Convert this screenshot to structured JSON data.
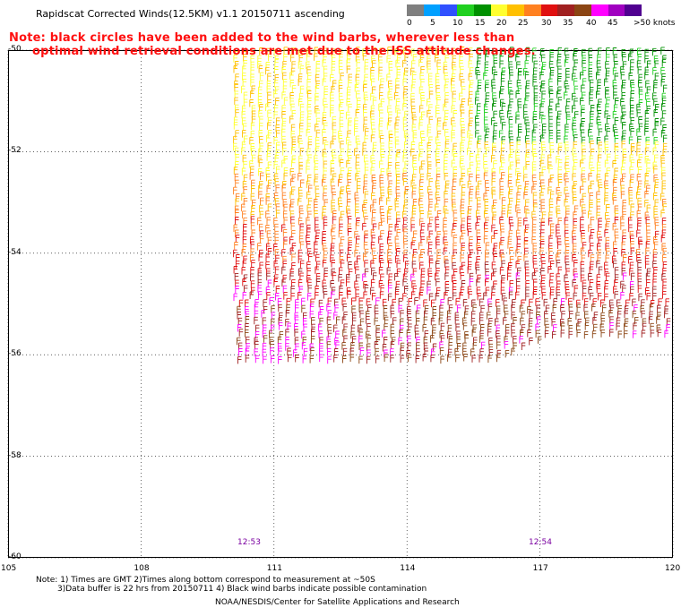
{
  "header": {
    "title": "Rapidscat Corrected Winds(12.5KM) v1.1 20150711 ascending",
    "note_line1": "Note: black circles have been added to the wind barbs, wherever less than",
    "note_line2": "optimal wind retrieval conditions are met due to the ISS attitude changes."
  },
  "legend": {
    "colors": [
      "#7f7f7f",
      "#00a0ff",
      "#3050ff",
      "#20d020",
      "#009000",
      "#ffff30",
      "#ffc000",
      "#ff8020",
      "#e01010",
      "#a02020",
      "#8b4513",
      "#ff00ff",
      "#a000c0",
      "#500090"
    ],
    "labels": [
      "0",
      "5",
      "10",
      "15",
      "20",
      "25",
      "30",
      "35",
      "40",
      "45",
      ">50 knots"
    ]
  },
  "map": {
    "lat_ticks": [
      "-50",
      "-52",
      "-54",
      "-56",
      "-58",
      "-60"
    ],
    "lon_ticks": [
      "105",
      "108",
      "111",
      "114",
      "117",
      "120"
    ],
    "time_labels": [
      "12:53",
      "12:54"
    ],
    "lat_range": [
      -60,
      -50
    ],
    "lon_range": [
      105,
      120
    ]
  },
  "footer": {
    "line1": "Note: 1) Times are GMT 2)Times along bottom correspond to measurement at ~50S",
    "line2": "3)Data buffer is 22 hrs from 20150711 4) Black wind barbs indicate possible contamination",
    "line3": "NOAA/NESDIS/Center for Satellite Applications and Research"
  }
}
